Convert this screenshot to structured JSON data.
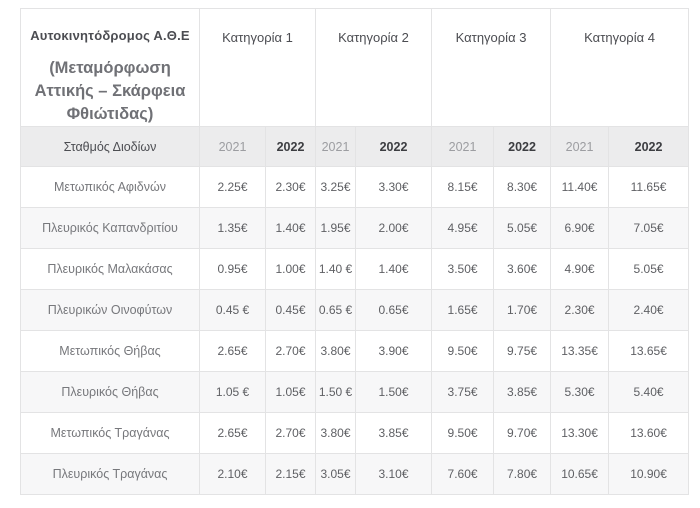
{
  "table": {
    "title_line1": "Αυτοκινητόδρομος Α.Θ.Ε",
    "title_line2": "(Μεταμόρφωση Αττικής – Σκάρφεια Φθιώτιδας)",
    "categories": [
      "Κατηγορία 1",
      "Κατηγορία 2",
      "Κατηγορία 3",
      "Κατηγορία 4"
    ],
    "station_header": "Σταθμός Διοδίων",
    "year_headers": [
      "2021",
      "2022",
      "2021",
      "2022",
      "2021",
      "2022",
      "2021",
      "2022"
    ],
    "rows": [
      {
        "station": "Μετωπικός Αφιδνών",
        "values": [
          "2.25€",
          "2.30€",
          "3.25€",
          "3.30€",
          "8.15€",
          "8.30€",
          "11.40€",
          "11.65€"
        ]
      },
      {
        "station": "Πλευρικός Καπανδριτίου",
        "values": [
          "1.35€",
          "1.40€",
          "1.95€",
          "2.00€",
          "4.95€",
          "5.05€",
          "6.90€",
          "7.05€"
        ]
      },
      {
        "station": "Πλευρικός Μαλακάσας",
        "values": [
          "0.95€",
          "1.00€",
          "1.40 €",
          "1.40€",
          "3.50€",
          "3.60€",
          "4.90€",
          "5.05€"
        ]
      },
      {
        "station": "Πλευρικών Οινοφύτων",
        "values": [
          "0.45 €",
          "0.45€",
          "0.65 €",
          "0.65€",
          "1.65€",
          "1.70€",
          "2.30€",
          "2.40€"
        ]
      },
      {
        "station": "Μετωπικός Θήβας",
        "values": [
          "2.65€",
          "2.70€",
          "3.80€",
          "3.90€",
          "9.50€",
          "9.75€",
          "13.35€",
          "13.65€"
        ]
      },
      {
        "station": "Πλευρικός Θήβας",
        "values": [
          "1.05 €",
          "1.05€",
          "1.50 €",
          "1.50€",
          "3.75€",
          "3.85€",
          "5.30€",
          "5.40€"
        ]
      },
      {
        "station": "Μετωπικός Τραγάνας",
        "values": [
          "2.65€",
          "2.70€",
          "3.80€",
          "3.85€",
          "9.50€",
          "9.70€",
          "13.30€",
          "13.60€"
        ]
      },
      {
        "station": "Πλευρικός Τραγάνας",
        "values": [
          "2.10€",
          "2.15€",
          "3.05€",
          "3.10€",
          "7.60€",
          "7.80€",
          "10.65€",
          "10.90€"
        ]
      }
    ],
    "colors": {
      "border": "#e3e3e4",
      "year_row_bg": "#ececed",
      "alt_row_bg": "#f7f7f8",
      "header_text": "#4c4d52",
      "muted_year_text": "#9c9da1",
      "bold_year_text": "#3c3d41",
      "station_text": "#77787c",
      "price_text": "#5f6064"
    }
  }
}
